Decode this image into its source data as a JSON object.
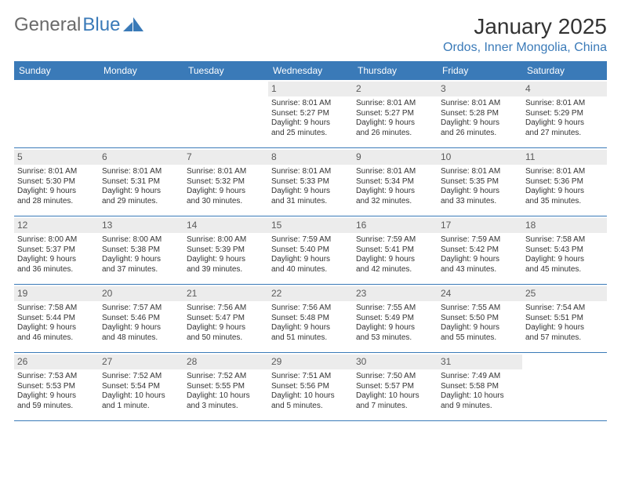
{
  "logo": {
    "text1": "General",
    "text2": "Blue"
  },
  "title": "January 2025",
  "location": "Ordos, Inner Mongolia, China",
  "colors": {
    "accent": "#3a7ab8",
    "header_bg": "#3a7ab8",
    "header_text": "#ffffff",
    "daynum_bg": "#ececec",
    "text": "#333333"
  },
  "day_names": [
    "Sunday",
    "Monday",
    "Tuesday",
    "Wednesday",
    "Thursday",
    "Friday",
    "Saturday"
  ],
  "weeks": [
    [
      {
        "n": "",
        "l1": "",
        "l2": "",
        "l3": "",
        "l4": ""
      },
      {
        "n": "",
        "l1": "",
        "l2": "",
        "l3": "",
        "l4": ""
      },
      {
        "n": "",
        "l1": "",
        "l2": "",
        "l3": "",
        "l4": ""
      },
      {
        "n": "1",
        "l1": "Sunrise: 8:01 AM",
        "l2": "Sunset: 5:27 PM",
        "l3": "Daylight: 9 hours",
        "l4": "and 25 minutes."
      },
      {
        "n": "2",
        "l1": "Sunrise: 8:01 AM",
        "l2": "Sunset: 5:27 PM",
        "l3": "Daylight: 9 hours",
        "l4": "and 26 minutes."
      },
      {
        "n": "3",
        "l1": "Sunrise: 8:01 AM",
        "l2": "Sunset: 5:28 PM",
        "l3": "Daylight: 9 hours",
        "l4": "and 26 minutes."
      },
      {
        "n": "4",
        "l1": "Sunrise: 8:01 AM",
        "l2": "Sunset: 5:29 PM",
        "l3": "Daylight: 9 hours",
        "l4": "and 27 minutes."
      }
    ],
    [
      {
        "n": "5",
        "l1": "Sunrise: 8:01 AM",
        "l2": "Sunset: 5:30 PM",
        "l3": "Daylight: 9 hours",
        "l4": "and 28 minutes."
      },
      {
        "n": "6",
        "l1": "Sunrise: 8:01 AM",
        "l2": "Sunset: 5:31 PM",
        "l3": "Daylight: 9 hours",
        "l4": "and 29 minutes."
      },
      {
        "n": "7",
        "l1": "Sunrise: 8:01 AM",
        "l2": "Sunset: 5:32 PM",
        "l3": "Daylight: 9 hours",
        "l4": "and 30 minutes."
      },
      {
        "n": "8",
        "l1": "Sunrise: 8:01 AM",
        "l2": "Sunset: 5:33 PM",
        "l3": "Daylight: 9 hours",
        "l4": "and 31 minutes."
      },
      {
        "n": "9",
        "l1": "Sunrise: 8:01 AM",
        "l2": "Sunset: 5:34 PM",
        "l3": "Daylight: 9 hours",
        "l4": "and 32 minutes."
      },
      {
        "n": "10",
        "l1": "Sunrise: 8:01 AM",
        "l2": "Sunset: 5:35 PM",
        "l3": "Daylight: 9 hours",
        "l4": "and 33 minutes."
      },
      {
        "n": "11",
        "l1": "Sunrise: 8:01 AM",
        "l2": "Sunset: 5:36 PM",
        "l3": "Daylight: 9 hours",
        "l4": "and 35 minutes."
      }
    ],
    [
      {
        "n": "12",
        "l1": "Sunrise: 8:00 AM",
        "l2": "Sunset: 5:37 PM",
        "l3": "Daylight: 9 hours",
        "l4": "and 36 minutes."
      },
      {
        "n": "13",
        "l1": "Sunrise: 8:00 AM",
        "l2": "Sunset: 5:38 PM",
        "l3": "Daylight: 9 hours",
        "l4": "and 37 minutes."
      },
      {
        "n": "14",
        "l1": "Sunrise: 8:00 AM",
        "l2": "Sunset: 5:39 PM",
        "l3": "Daylight: 9 hours",
        "l4": "and 39 minutes."
      },
      {
        "n": "15",
        "l1": "Sunrise: 7:59 AM",
        "l2": "Sunset: 5:40 PM",
        "l3": "Daylight: 9 hours",
        "l4": "and 40 minutes."
      },
      {
        "n": "16",
        "l1": "Sunrise: 7:59 AM",
        "l2": "Sunset: 5:41 PM",
        "l3": "Daylight: 9 hours",
        "l4": "and 42 minutes."
      },
      {
        "n": "17",
        "l1": "Sunrise: 7:59 AM",
        "l2": "Sunset: 5:42 PM",
        "l3": "Daylight: 9 hours",
        "l4": "and 43 minutes."
      },
      {
        "n": "18",
        "l1": "Sunrise: 7:58 AM",
        "l2": "Sunset: 5:43 PM",
        "l3": "Daylight: 9 hours",
        "l4": "and 45 minutes."
      }
    ],
    [
      {
        "n": "19",
        "l1": "Sunrise: 7:58 AM",
        "l2": "Sunset: 5:44 PM",
        "l3": "Daylight: 9 hours",
        "l4": "and 46 minutes."
      },
      {
        "n": "20",
        "l1": "Sunrise: 7:57 AM",
        "l2": "Sunset: 5:46 PM",
        "l3": "Daylight: 9 hours",
        "l4": "and 48 minutes."
      },
      {
        "n": "21",
        "l1": "Sunrise: 7:56 AM",
        "l2": "Sunset: 5:47 PM",
        "l3": "Daylight: 9 hours",
        "l4": "and 50 minutes."
      },
      {
        "n": "22",
        "l1": "Sunrise: 7:56 AM",
        "l2": "Sunset: 5:48 PM",
        "l3": "Daylight: 9 hours",
        "l4": "and 51 minutes."
      },
      {
        "n": "23",
        "l1": "Sunrise: 7:55 AM",
        "l2": "Sunset: 5:49 PM",
        "l3": "Daylight: 9 hours",
        "l4": "and 53 minutes."
      },
      {
        "n": "24",
        "l1": "Sunrise: 7:55 AM",
        "l2": "Sunset: 5:50 PM",
        "l3": "Daylight: 9 hours",
        "l4": "and 55 minutes."
      },
      {
        "n": "25",
        "l1": "Sunrise: 7:54 AM",
        "l2": "Sunset: 5:51 PM",
        "l3": "Daylight: 9 hours",
        "l4": "and 57 minutes."
      }
    ],
    [
      {
        "n": "26",
        "l1": "Sunrise: 7:53 AM",
        "l2": "Sunset: 5:53 PM",
        "l3": "Daylight: 9 hours",
        "l4": "and 59 minutes."
      },
      {
        "n": "27",
        "l1": "Sunrise: 7:52 AM",
        "l2": "Sunset: 5:54 PM",
        "l3": "Daylight: 10 hours",
        "l4": "and 1 minute."
      },
      {
        "n": "28",
        "l1": "Sunrise: 7:52 AM",
        "l2": "Sunset: 5:55 PM",
        "l3": "Daylight: 10 hours",
        "l4": "and 3 minutes."
      },
      {
        "n": "29",
        "l1": "Sunrise: 7:51 AM",
        "l2": "Sunset: 5:56 PM",
        "l3": "Daylight: 10 hours",
        "l4": "and 5 minutes."
      },
      {
        "n": "30",
        "l1": "Sunrise: 7:50 AM",
        "l2": "Sunset: 5:57 PM",
        "l3": "Daylight: 10 hours",
        "l4": "and 7 minutes."
      },
      {
        "n": "31",
        "l1": "Sunrise: 7:49 AM",
        "l2": "Sunset: 5:58 PM",
        "l3": "Daylight: 10 hours",
        "l4": "and 9 minutes."
      },
      {
        "n": "",
        "l1": "",
        "l2": "",
        "l3": "",
        "l4": ""
      }
    ]
  ]
}
